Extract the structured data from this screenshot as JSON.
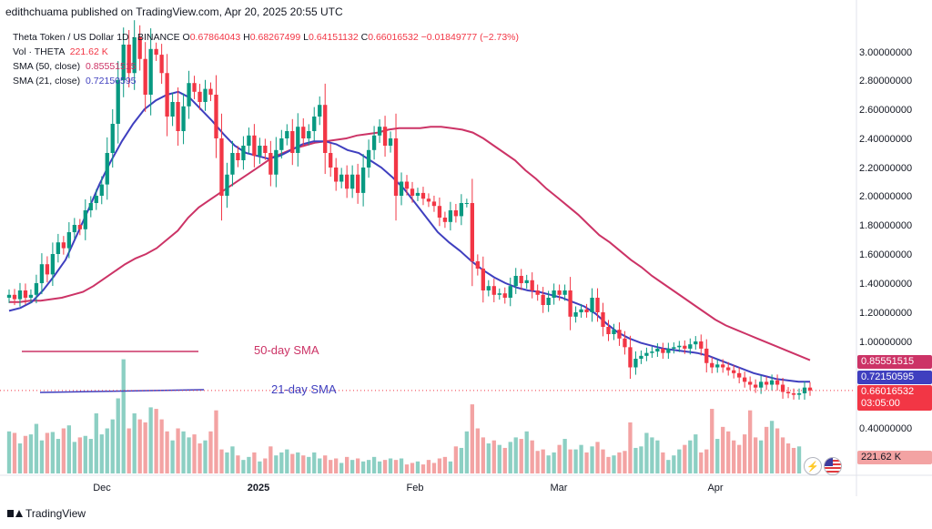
{
  "header": {
    "publisher": "edithchuama published on TradingView.com, Apr 20, 2025 20:55 UTC"
  },
  "legend": {
    "symbol": "Theta Token / US Dollar 1D · BINANCE",
    "open_label": "O",
    "open": "0.67864043",
    "high_label": "H",
    "high": "0.68267499",
    "low_label": "L",
    "low": "0.64151132",
    "close_label": "C",
    "close": "0.66016532",
    "change": "−0.01849777 (−2.73%)",
    "vol_label": "Vol · THETA",
    "vol_value": "221.62 K",
    "sma50_label": "SMA (50, close)",
    "sma50_value": "0.85551515",
    "sma21_label": "SMA (21, close)",
    "sma21_value": "0.72150595"
  },
  "annotations": {
    "sma50": "50-day SMA",
    "sma21": "21-day SMA"
  },
  "price_tags": {
    "sma50": "0.85551515",
    "sma21": "0.72150595",
    "last": "0.66016532",
    "countdown": "03:05:00",
    "volume": "221.62 K"
  },
  "brand": {
    "name": "TradingView"
  },
  "colors": {
    "up": "#089981",
    "down": "#f23645",
    "sma50": "#cc3366",
    "sma21": "#3f3fbf",
    "vol_up": "#8ccfc3",
    "vol_down": "#f3a3a3",
    "axis_text": "#131722"
  },
  "icons": {
    "alert": "lightning-icon",
    "flag": "us-flag-icon",
    "logo": "tradingview-logo-icon"
  },
  "chart_data": {
    "type": "candlestick",
    "title": "Theta Token / US Dollar 1D · BINANCE",
    "y_ticks": [
      "3.00000000",
      "2.80000000",
      "2.60000000",
      "2.40000000",
      "2.20000000",
      "2.00000000",
      "1.80000000",
      "1.60000000",
      "1.40000000",
      "1.20000000",
      "1.00000000",
      "0.40000000"
    ],
    "ylim": [
      0.4,
      3.0
    ],
    "x_ticks": [
      "Dec",
      "2025",
      "Feb",
      "Mar",
      "Apr"
    ],
    "x_range": [
      "2024-11-04",
      "2025-04-20"
    ],
    "grid": false,
    "closes": [
      1.32,
      1.29,
      1.35,
      1.3,
      1.32,
      1.4,
      1.53,
      1.46,
      1.6,
      1.68,
      1.64,
      1.75,
      1.8,
      1.77,
      1.9,
      1.95,
      2.0,
      2.08,
      2.3,
      2.5,
      2.8,
      3.05,
      2.85,
      3.1,
      2.95,
      2.7,
      3.02,
      2.98,
      2.85,
      2.55,
      2.65,
      2.45,
      2.62,
      2.78,
      2.72,
      2.65,
      2.74,
      2.7,
      2.4,
      2.0,
      2.15,
      2.3,
      2.25,
      2.35,
      2.42,
      2.28,
      2.35,
      2.3,
      2.15,
      2.32,
      2.4,
      2.45,
      2.3,
      2.48,
      2.4,
      2.45,
      2.55,
      2.63,
      2.3,
      2.2,
      2.1,
      2.15,
      2.05,
      2.15,
      2.02,
      2.2,
      2.32,
      2.42,
      2.48,
      2.35,
      2.4,
      2.0,
      2.1,
      2.05,
      2.0,
      2.02,
      1.98,
      1.96,
      1.93,
      1.85,
      1.82,
      1.9,
      1.86,
      1.95,
      1.95,
      1.55,
      1.5,
      1.35,
      1.38,
      1.32,
      1.33,
      1.3,
      1.38,
      1.45,
      1.4,
      1.42,
      1.35,
      1.32,
      1.25,
      1.3,
      1.35,
      1.32,
      1.35,
      1.17,
      1.2,
      1.22,
      1.2,
      1.3,
      1.2,
      1.1,
      1.05,
      1.08,
      1.02,
      0.96,
      0.82,
      0.88,
      0.9,
      0.92,
      0.93,
      0.95,
      0.92,
      0.95,
      0.96,
      0.97,
      0.95,
      0.98,
      1.0,
      0.95,
      0.85,
      0.82,
      0.84,
      0.82,
      0.8,
      0.78,
      0.75,
      0.72,
      0.7,
      0.68,
      0.72,
      0.7,
      0.73,
      0.7,
      0.65,
      0.64,
      0.63,
      0.64,
      0.68,
      0.66
    ],
    "volumes": [
      140,
      135,
      100,
      125,
      130,
      165,
      110,
      135,
      138,
      115,
      150,
      160,
      105,
      120,
      125,
      115,
      200,
      130,
      150,
      180,
      250,
      380,
      150,
      200,
      180,
      170,
      220,
      215,
      180,
      140,
      110,
      150,
      140,
      120,
      130,
      100,
      110,
      140,
      210,
      80,
      70,
      90,
      60,
      45,
      55,
      70,
      40,
      50,
      90,
      60,
      70,
      80,
      65,
      70,
      60,
      55,
      70,
      50,
      60,
      45,
      50,
      35,
      55,
      45,
      50,
      40,
      45,
      55,
      40,
      45,
      50,
      45,
      50,
      30,
      35,
      40,
      30,
      45,
      35,
      50,
      55,
      40,
      90,
      85,
      140,
      230,
      150,
      120,
      100,
      110,
      95,
      85,
      105,
      120,
      115,
      140,
      110,
      75,
      80,
      60,
      70,
      95,
      115,
      80,
      80,
      95,
      70,
      90,
      105,
      80,
      55,
      60,
      70,
      75,
      170,
      85,
      90,
      135,
      120,
      110,
      70,
      45,
      60,
      80,
      95,
      110,
      130,
      70,
      80,
      215,
      115,
      155,
      140,
      110,
      95,
      130,
      210,
      120,
      110,
      155,
      175,
      150,
      120,
      100,
      85,
      90
    ],
    "sma50": [
      1.27,
      1.27,
      1.28,
      1.28,
      1.29,
      1.3,
      1.32,
      1.34,
      1.38,
      1.43,
      1.48,
      1.53,
      1.57,
      1.6,
      1.64,
      1.7,
      1.76,
      1.85,
      1.92,
      1.97,
      2.02,
      2.07,
      2.12,
      2.17,
      2.22,
      2.27,
      2.3,
      2.33,
      2.35,
      2.37,
      2.38,
      2.39,
      2.4,
      2.42,
      2.43,
      2.44,
      2.46,
      2.47,
      2.47,
      2.47,
      2.48,
      2.48,
      2.47,
      2.46,
      2.44,
      2.4,
      2.35,
      2.3,
      2.25,
      2.18,
      2.12,
      2.05,
      1.99,
      1.93,
      1.87,
      1.8,
      1.73,
      1.68,
      1.62,
      1.56,
      1.51,
      1.45,
      1.4,
      1.35,
      1.3,
      1.25,
      1.2,
      1.15,
      1.11,
      1.08,
      1.05,
      1.02,
      0.99,
      0.96,
      0.93,
      0.9,
      0.87
    ],
    "sma21": [
      1.21,
      1.23,
      1.27,
      1.35,
      1.45,
      1.56,
      1.73,
      1.9,
      2.08,
      2.24,
      2.38,
      2.5,
      2.6,
      2.66,
      2.7,
      2.72,
      2.68,
      2.6,
      2.52,
      2.43,
      2.35,
      2.3,
      2.28,
      2.26,
      2.28,
      2.32,
      2.36,
      2.38,
      2.38,
      2.36,
      2.32,
      2.3,
      2.25,
      2.2,
      2.13,
      2.05,
      1.95,
      1.85,
      1.75,
      1.68,
      1.62,
      1.55,
      1.49,
      1.44,
      1.4,
      1.37,
      1.35,
      1.34,
      1.32,
      1.3,
      1.27,
      1.24,
      1.19,
      1.12,
      1.06,
      1.02,
      0.99,
      0.97,
      0.95,
      0.94,
      0.93,
      0.92,
      0.9,
      0.87,
      0.84,
      0.81,
      0.78,
      0.76,
      0.74,
      0.73,
      0.72,
      0.72
    ]
  }
}
